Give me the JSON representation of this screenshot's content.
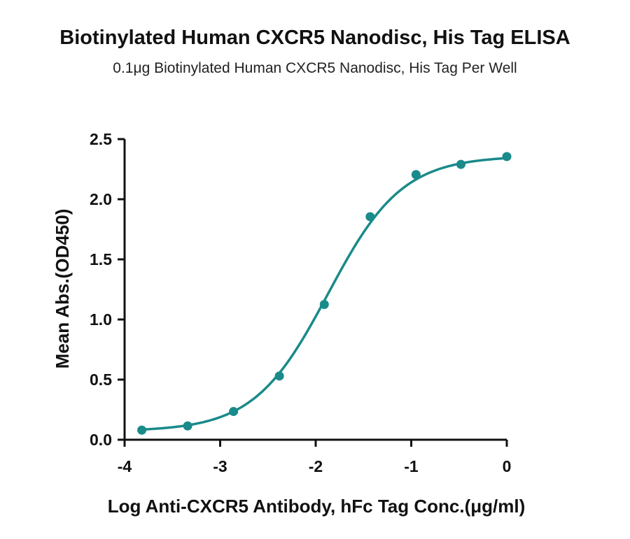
{
  "title": "Biotinylated Human CXCR5 Nanodisc, His Tag ELISA",
  "subtitle": "0.1μg Biotinylated Human CXCR5 Nanodisc, His Tag Per Well",
  "colors": {
    "series": "#1a8a8a",
    "axis": "#111111",
    "text": "#111111"
  },
  "chart_data": {
    "type": "scatter",
    "title": "Biotinylated Human CXCR5 Nanodisc, His Tag ELISA",
    "subtitle": "0.1μg Biotinylated Human CXCR5 Nanodisc, His Tag Per Well",
    "xlabel": "Log Anti-CXCR5 Antibody, hFc Tag Conc.(μg/ml)",
    "ylabel": "Mean Abs.(OD450)",
    "xlim": [
      -4,
      0
    ],
    "ylim": [
      0,
      2.5
    ],
    "xticks": [
      "-4",
      "-3",
      "-2",
      "-1",
      "0"
    ],
    "yticks": [
      "0.0",
      "0.5",
      "1.0",
      "1.5",
      "2.0",
      "2.5"
    ],
    "grid": false,
    "legend": "none",
    "fit": "four-parameter logistic curve",
    "series": [
      {
        "x": [
          -3.82,
          -3.34,
          -2.86,
          -2.38,
          -1.91,
          -1.43,
          -0.95,
          -0.48,
          0.0
        ],
        "y": [
          0.08,
          0.115,
          0.235,
          0.53,
          1.125,
          1.855,
          2.205,
          2.29,
          2.355
        ]
      }
    ]
  }
}
